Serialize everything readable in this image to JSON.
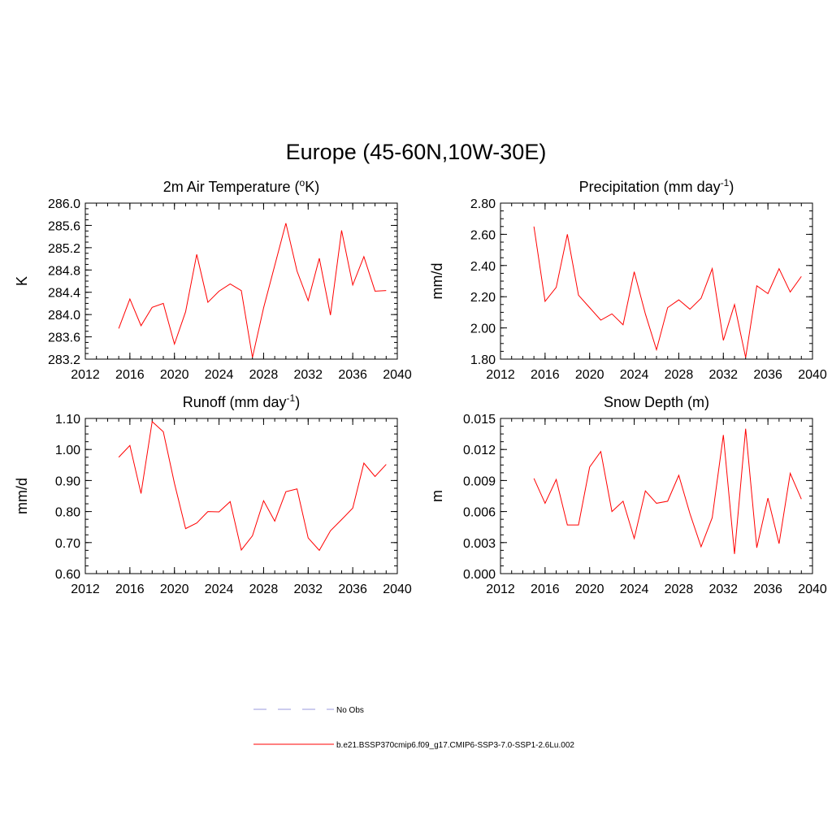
{
  "figure": {
    "title": "Europe (45-60N,10W-30E)"
  },
  "chart_data": [
    {
      "type": "line",
      "title": "2m Air Temperature (",
      "title_sup": "o",
      "title_after": "K)",
      "ylabel": "K",
      "xlim": [
        2012,
        2040
      ],
      "ylim": [
        283.2,
        286.0
      ],
      "xticks": [
        2012,
        2016,
        2020,
        2024,
        2028,
        2032,
        2036,
        2040
      ],
      "xtick_labels": [
        "2012",
        "2016",
        "2020",
        "2024",
        "2028",
        "2032",
        "2036",
        "2040"
      ],
      "yticks": [
        283.2,
        283.6,
        284.0,
        284.4,
        284.8,
        285.2,
        285.6,
        286.0
      ],
      "ytick_labels": [
        "283.2",
        "283.6",
        "284.0",
        "284.4",
        "284.8",
        "285.2",
        "285.6",
        "286.0"
      ],
      "series": [
        {
          "name": "b.e21.BSSP370cmip6.f09_g17.CMIP6-SSP3-7.0-SSP1-2.6Lu.002",
          "color": "#ff0000",
          "x": [
            2015,
            2016,
            2017,
            2018,
            2019,
            2020,
            2021,
            2022,
            2023,
            2024,
            2025,
            2026,
            2027,
            2028,
            2029,
            2030,
            2031,
            2032,
            2033,
            2034,
            2035,
            2036,
            2037,
            2038,
            2039
          ],
          "y": [
            283.75,
            284.28,
            283.8,
            284.13,
            284.2,
            283.47,
            284.05,
            285.08,
            284.22,
            284.42,
            284.55,
            284.43,
            283.23,
            284.12,
            284.88,
            285.64,
            284.78,
            284.25,
            285.01,
            283.99,
            285.51,
            284.53,
            285.04,
            284.42,
            284.43
          ]
        }
      ]
    },
    {
      "type": "line",
      "title": "Precipitation (mm day",
      "title_sup": "-1",
      "title_after": ")",
      "ylabel": "mm/d",
      "xlim": [
        2012,
        2040
      ],
      "ylim": [
        1.8,
        2.8
      ],
      "xticks": [
        2012,
        2016,
        2020,
        2024,
        2028,
        2032,
        2036,
        2040
      ],
      "xtick_labels": [
        "2012",
        "2016",
        "2020",
        "2024",
        "2028",
        "2032",
        "2036",
        "2040"
      ],
      "yticks": [
        1.8,
        2.0,
        2.2,
        2.4,
        2.6,
        2.8
      ],
      "ytick_labels": [
        "1.80",
        "2.00",
        "2.20",
        "2.40",
        "2.60",
        "2.80"
      ],
      "series": [
        {
          "name": "b.e21.BSSP370cmip6.f09_g17.CMIP6-SSP3-7.0-SSP1-2.6Lu.002",
          "color": "#ff0000",
          "x": [
            2015,
            2016,
            2017,
            2018,
            2019,
            2020,
            2021,
            2022,
            2023,
            2024,
            2025,
            2026,
            2027,
            2028,
            2029,
            2030,
            2031,
            2032,
            2033,
            2034,
            2035,
            2036,
            2037,
            2038,
            2039
          ],
          "y": [
            2.65,
            2.17,
            2.26,
            2.6,
            2.21,
            2.13,
            2.05,
            2.09,
            2.02,
            2.36,
            2.09,
            1.86,
            2.13,
            2.18,
            2.12,
            2.19,
            2.38,
            1.92,
            2.15,
            1.81,
            2.27,
            2.22,
            2.38,
            2.23,
            2.33
          ]
        }
      ]
    },
    {
      "type": "line",
      "title": "Runoff (mm day",
      "title_sup": "-1",
      "title_after": ")",
      "ylabel": "mm/d",
      "xlim": [
        2012,
        2040
      ],
      "ylim": [
        0.6,
        1.1
      ],
      "xticks": [
        2012,
        2016,
        2020,
        2024,
        2028,
        2032,
        2036,
        2040
      ],
      "xtick_labels": [
        "2012",
        "2016",
        "2020",
        "2024",
        "2028",
        "2032",
        "2036",
        "2040"
      ],
      "yticks": [
        0.6,
        0.7,
        0.8,
        0.9,
        1.0,
        1.1
      ],
      "ytick_labels": [
        "0.60",
        "0.70",
        "0.80",
        "0.90",
        "1.00",
        "1.10"
      ],
      "series": [
        {
          "name": "b.e21.BSSP370cmip6.f09_g17.CMIP6-SSP3-7.0-SSP1-2.6Lu.002",
          "color": "#ff0000",
          "x": [
            2015,
            2016,
            2017,
            2018,
            2019,
            2020,
            2021,
            2022,
            2023,
            2024,
            2025,
            2026,
            2027,
            2028,
            2029,
            2030,
            2031,
            2032,
            2033,
            2034,
            2035,
            2036,
            2037,
            2038,
            2039
          ],
          "y": [
            0.975,
            1.013,
            0.858,
            1.09,
            1.057,
            0.891,
            0.745,
            0.763,
            0.8,
            0.799,
            0.832,
            0.676,
            0.722,
            0.835,
            0.769,
            0.864,
            0.873,
            0.715,
            0.675,
            0.738,
            0.774,
            0.811,
            0.956,
            0.913,
            0.952
          ]
        }
      ]
    },
    {
      "type": "line",
      "title": "Snow Depth (m)",
      "title_sup": "",
      "title_after": "",
      "ylabel": "m",
      "xlim": [
        2012,
        2040
      ],
      "ylim": [
        0.0,
        0.015
      ],
      "xticks": [
        2012,
        2016,
        2020,
        2024,
        2028,
        2032,
        2036,
        2040
      ],
      "xtick_labels": [
        "2012",
        "2016",
        "2020",
        "2024",
        "2028",
        "2032",
        "2036",
        "2040"
      ],
      "yticks": [
        0.0,
        0.003,
        0.006,
        0.009,
        0.012,
        0.015
      ],
      "ytick_labels": [
        "0.000",
        "0.003",
        "0.006",
        "0.009",
        "0.012",
        "0.015"
      ],
      "series": [
        {
          "name": "b.e21.BSSP370cmip6.f09_g17.CMIP6-SSP3-7.0-SSP1-2.6Lu.002",
          "color": "#ff0000",
          "x": [
            2015,
            2016,
            2017,
            2018,
            2019,
            2020,
            2021,
            2022,
            2023,
            2024,
            2025,
            2026,
            2027,
            2028,
            2029,
            2030,
            2031,
            2032,
            2033,
            2034,
            2035,
            2036,
            2037,
            2038,
            2039
          ],
          "y": [
            0.0092,
            0.0068,
            0.0091,
            0.0047,
            0.0047,
            0.0103,
            0.0118,
            0.006,
            0.007,
            0.0034,
            0.008,
            0.0068,
            0.007,
            0.0095,
            0.0058,
            0.0026,
            0.0054,
            0.0134,
            0.0019,
            0.014,
            0.0025,
            0.0073,
            0.0029,
            0.0097,
            0.0072
          ]
        }
      ]
    }
  ],
  "legend": {
    "entries": [
      {
        "label": "No Obs",
        "color": "#9999dd",
        "style": "dashed"
      },
      {
        "label": "b.e21.BSSP370cmip6.f09_g17.CMIP6-SSP3-7.0-SSP1-2.6Lu.002",
        "color": "#ff0000",
        "style": "solid"
      }
    ]
  }
}
